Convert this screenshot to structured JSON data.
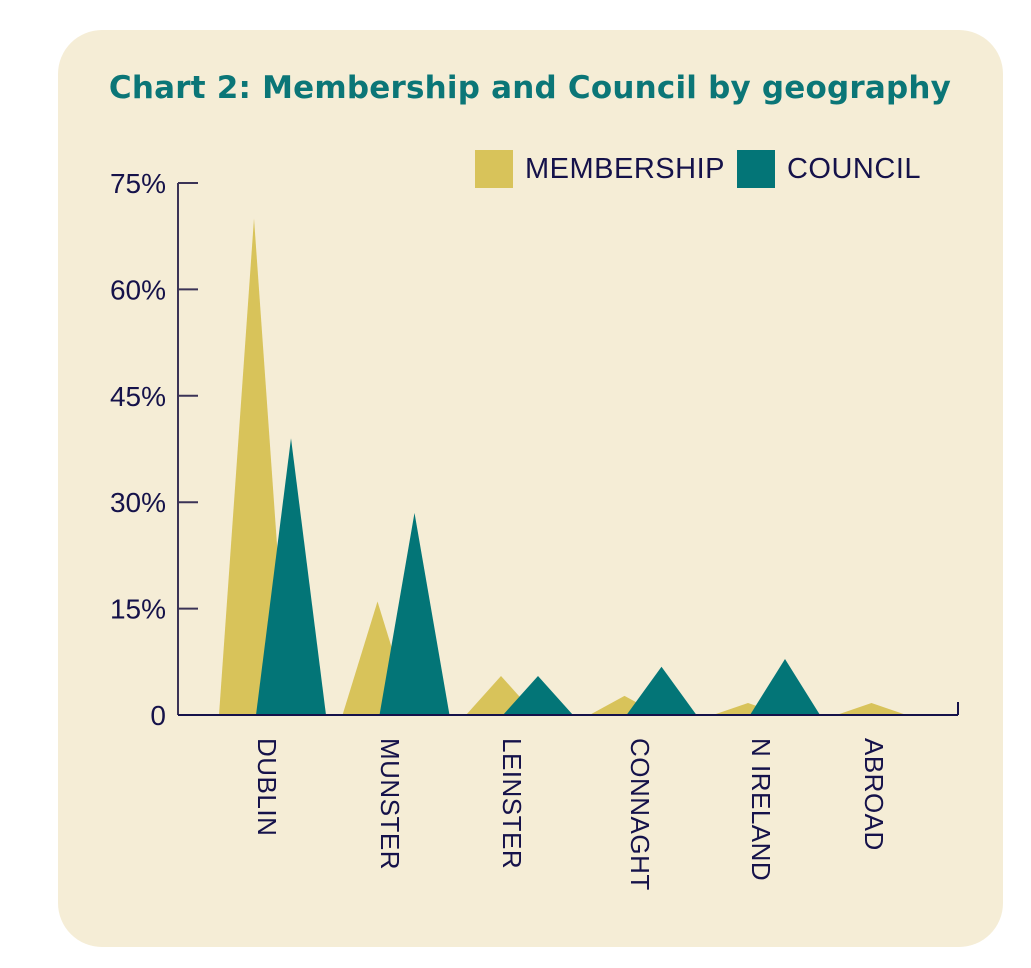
{
  "chart_data": {
    "type": "area",
    "title": "Chart 2: Membership and Council by geography",
    "xlabel": "",
    "ylabel": "",
    "ylim": [
      0,
      75
    ],
    "yticks": [
      "0",
      "15%",
      "30%",
      "45%",
      "60%",
      "75%"
    ],
    "ytick_values": [
      0,
      15,
      30,
      45,
      60,
      75
    ],
    "categories": [
      "DUBLIN",
      "MUNSTER",
      "LEINSTER",
      "CONNAGHT",
      "N IRELAND",
      "ABROAD"
    ],
    "series": [
      {
        "name": "MEMBERSHIP",
        "color": "#d8c35a",
        "values": [
          70,
          16,
          5.5,
          2.7,
          1.7,
          1.7
        ]
      },
      {
        "name": "COUNCIL",
        "color": "#037577",
        "values": [
          39,
          28.5,
          5.5,
          6.8,
          7.9,
          0
        ]
      }
    ],
    "legend_position": "top-right",
    "grid": false,
    "marker_shape": "triangle"
  },
  "colors": {
    "background": "#f5edd6",
    "title": "#0b7677",
    "text": "#15124a",
    "axis": "#3b3356",
    "membership": "#d8c35a",
    "council": "#037577"
  }
}
